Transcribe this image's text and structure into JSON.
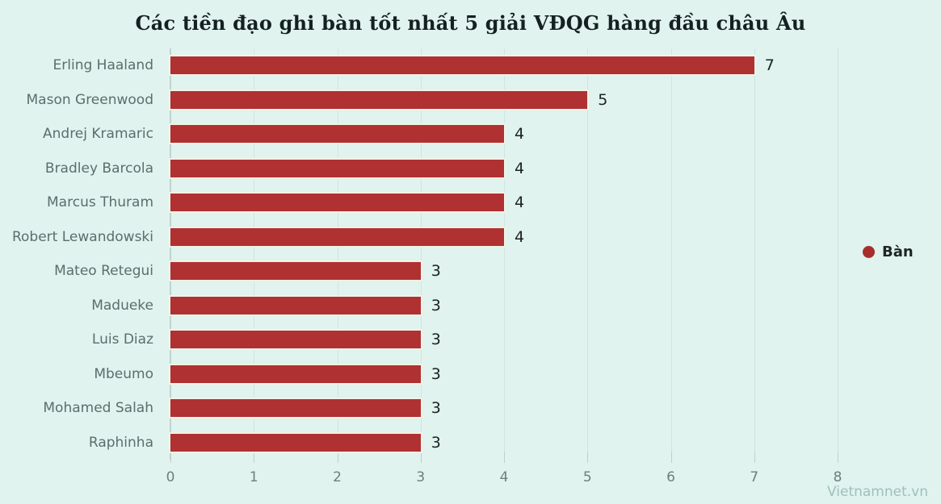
{
  "title": "Các tiền đạo ghi bàn tốt nhất 5 giải VĐQG hàng đầu châu Âu",
  "watermark": "Vietnamnet.vn",
  "legend": {
    "label": "Bàn"
  },
  "colors": {
    "background": "#e0f3ee",
    "bar": "#af3131",
    "bar_stroke": "#f2f1e7",
    "legend_dot": "#a82d2d"
  },
  "chart_data": {
    "type": "bar",
    "orientation": "horizontal",
    "title": "Các tiền đạo ghi bàn tốt nhất 5 giải VĐQG hàng đầu châu Âu",
    "categories": [
      "Erling Haaland",
      "Mason Greenwood",
      "Andrej Kramaric",
      "Bradley Barcola",
      "Marcus Thuram",
      "Robert Lewandowski",
      "Mateo Retegui",
      "Madueke",
      "Luis Diaz",
      "Mbeumo",
      "Mohamed Salah",
      "Raphinha"
    ],
    "series": [
      {
        "name": "Bàn",
        "values": [
          7,
          5,
          4,
          4,
          4,
          4,
          3,
          3,
          3,
          3,
          3,
          3
        ]
      }
    ],
    "xlabel": "",
    "ylabel": "",
    "xlim": [
      0,
      8
    ],
    "xticks": [
      0,
      1,
      2,
      3,
      4,
      5,
      6,
      7,
      8
    ],
    "grid": true,
    "value_labels": true,
    "legend_position": "right-middle"
  }
}
